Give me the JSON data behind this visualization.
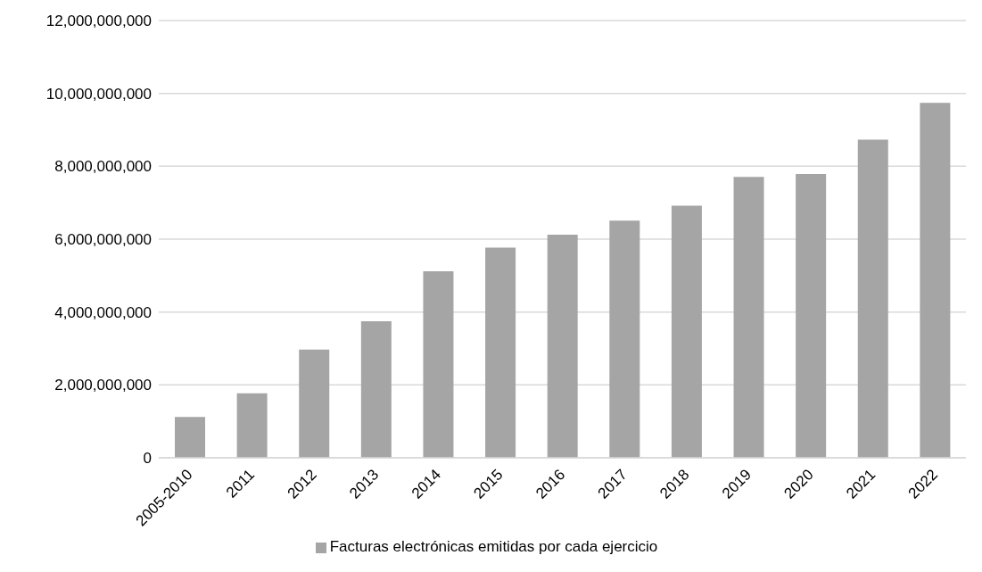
{
  "chart_data": {
    "type": "bar",
    "categories": [
      "2005-2010",
      "2011",
      "2012",
      "2013",
      "2014",
      "2015",
      "2016",
      "2017",
      "2018",
      "2019",
      "2020",
      "2021",
      "2022"
    ],
    "series": [
      {
        "name": "Facturas electrónicas emitidas por cada ejercicio",
        "color": "#a5a5a5",
        "values": [
          1120000000,
          1770000000,
          2970000000,
          3750000000,
          5120000000,
          5770000000,
          6120000000,
          6510000000,
          6920000000,
          7710000000,
          7790000000,
          8730000000,
          9740000000
        ]
      }
    ],
    "ylim": [
      0,
      12000000000
    ],
    "yticks": [
      {
        "value": 0,
        "label": "0"
      },
      {
        "value": 2000000000,
        "label": "2,000,000,000"
      },
      {
        "value": 4000000000,
        "label": "4,000,000,000"
      },
      {
        "value": 6000000000,
        "label": "6,000,000,000"
      },
      {
        "value": 8000000000,
        "label": "8,000,000,000"
      },
      {
        "value": 10000000000,
        "label": "10,000,000,000"
      },
      {
        "value": 12000000000,
        "label": "12,000,000,000"
      }
    ],
    "grid": "y",
    "legend": "bottom"
  }
}
